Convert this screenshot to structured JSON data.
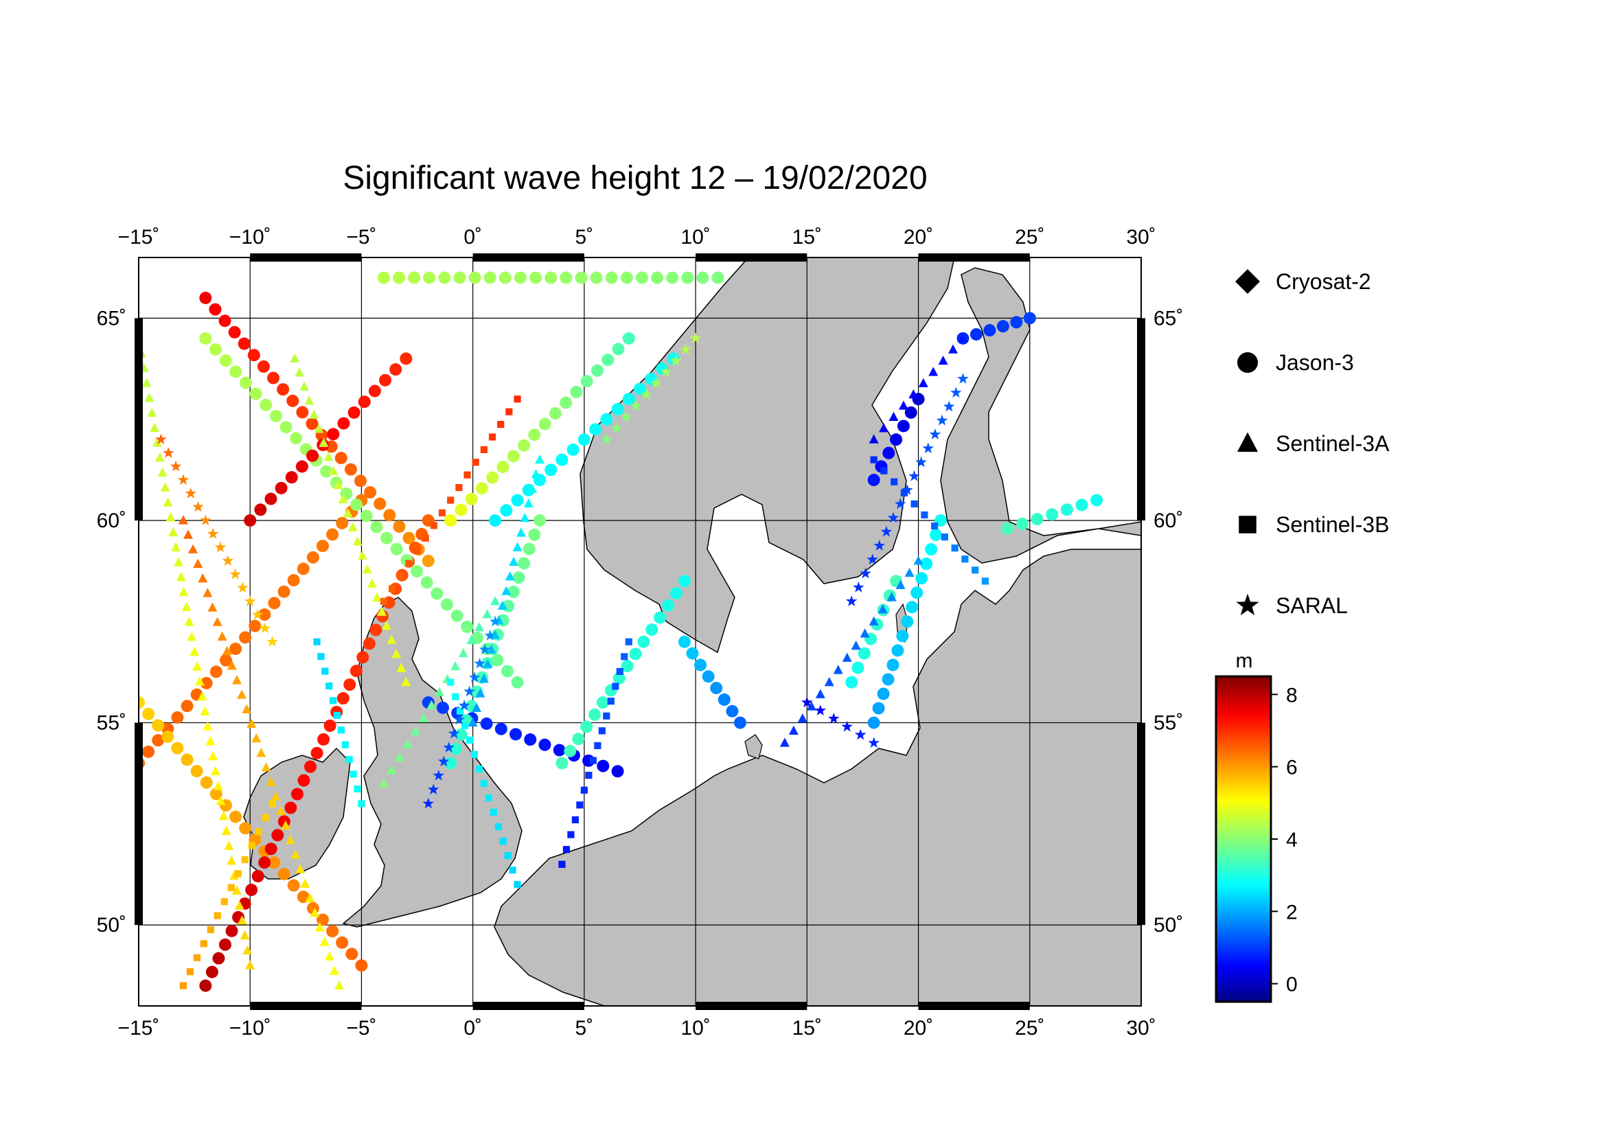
{
  "title": "Significant wave height 12 – 19/02/2020",
  "map": {
    "lon_range": [
      -15,
      30
    ],
    "lat_range": [
      48,
      66.5
    ],
    "lon_ticks": [
      -15,
      -10,
      -5,
      0,
      5,
      10,
      15,
      20,
      25,
      30
    ],
    "lat_ticks": [
      50,
      55,
      60,
      65
    ],
    "lon_tick_labels": [
      "−15˚",
      "−10˚",
      "−5˚",
      "0˚",
      "5˚",
      "10˚",
      "15˚",
      "20˚",
      "25˚",
      "30˚"
    ],
    "lat_tick_labels": [
      "50˚",
      "55˚",
      "60˚",
      "65˚"
    ],
    "grid": true,
    "land_color": "#bebebe",
    "sea_color": "#ffffff"
  },
  "legend": {
    "items": [
      {
        "label": "Cryosat-2",
        "symbol": "diamond"
      },
      {
        "label": "Jason-3",
        "symbol": "circle"
      },
      {
        "label": "Sentinel-3A",
        "symbol": "triangle"
      },
      {
        "label": "Sentinel-3B",
        "symbol": "square"
      },
      {
        "label": "SARAL",
        "symbol": "star"
      }
    ]
  },
  "colorbar": {
    "unit": "m",
    "min": -0.5,
    "max": 8.5,
    "ticks": [
      0,
      2,
      4,
      6,
      8
    ],
    "tick_labels": [
      "0",
      "2",
      "4",
      "6",
      "8"
    ],
    "colormap": "jet"
  },
  "chart_data": {
    "type": "scatter",
    "title": "Significant wave height 12 – 19/02/2020",
    "xlabel": "",
    "ylabel": "",
    "xlim": [
      -15,
      30
    ],
    "ylim": [
      48,
      66.5
    ],
    "value_unit": "m",
    "tracks": [
      {
        "satellite": "Jason-3",
        "from": [
          -15,
          54.0
        ],
        "to": [
          -5,
          60.5
        ],
        "swh": [
          6.5,
          6.3
        ]
      },
      {
        "satellite": "Jason-3",
        "from": [
          -12,
          65.5
        ],
        "to": [
          -2,
          59.0
        ],
        "swh": [
          7.5,
          6.0
        ]
      },
      {
        "satellite": "Jason-3",
        "from": [
          -5,
          49.0
        ],
        "to": [
          -15,
          55.5
        ],
        "swh": [
          6.5,
          5.5
        ]
      },
      {
        "satellite": "Jason-3",
        "from": [
          -12,
          48.5
        ],
        "to": [
          -2,
          60.0
        ],
        "swh": [
          8.0,
          6.5
        ]
      },
      {
        "satellite": "Jason-3",
        "from": [
          2,
          56.0
        ],
        "to": [
          -12,
          64.5
        ],
        "swh": [
          3.8,
          4.5
        ]
      },
      {
        "satellite": "Jason-3",
        "from": [
          7,
          64.5
        ],
        "to": [
          -1,
          60.0
        ],
        "swh": [
          3.5,
          5.0
        ]
      },
      {
        "satellite": "Jason-3",
        "from": [
          -10,
          60.0
        ],
        "to": [
          -3,
          64.0
        ],
        "swh": [
          7.8,
          7.0
        ]
      },
      {
        "satellite": "Jason-3",
        "from": [
          1,
          60.0
        ],
        "to": [
          9,
          64.0
        ],
        "swh": [
          2.8,
          3.0
        ]
      },
      {
        "satellite": "Jason-3",
        "from": [
          -2,
          55.5
        ],
        "to": [
          6.5,
          53.8
        ],
        "swh": [
          1.2,
          0.5
        ]
      },
      {
        "satellite": "Jason-3",
        "from": [
          -1,
          54.0
        ],
        "to": [
          3,
          60.0
        ],
        "swh": [
          3.2,
          4.0
        ]
      },
      {
        "satellite": "Jason-3",
        "from": [
          4,
          54.0
        ],
        "to": [
          9.5,
          58.5
        ],
        "swh": [
          3.5,
          3.0
        ]
      },
      {
        "satellite": "Jason-3",
        "from": [
          9.5,
          57.0
        ],
        "to": [
          12,
          55.0
        ],
        "swh": [
          2.5,
          1.5
        ]
      },
      {
        "satellite": "Jason-3",
        "from": [
          18,
          55.0
        ],
        "to": [
          21,
          60.0
        ],
        "swh": [
          2.0,
          3.0
        ]
      },
      {
        "satellite": "Jason-3",
        "from": [
          17,
          56.0
        ],
        "to": [
          19,
          58.5
        ],
        "swh": [
          3.0,
          3.5
        ]
      },
      {
        "satellite": "Jason-3",
        "from": [
          20,
          63.0
        ],
        "to": [
          18,
          61.0
        ],
        "swh": [
          0.2,
          0.8
        ]
      },
      {
        "satellite": "Jason-3",
        "from": [
          22,
          64.5
        ],
        "to": [
          25,
          65.0
        ],
        "swh": [
          1.0,
          1.2
        ]
      },
      {
        "satellite": "Jason-3",
        "from": [
          24,
          59.8
        ],
        "to": [
          28,
          60.5
        ],
        "swh": [
          3.5,
          3.0
        ]
      },
      {
        "satellite": "Jason-3",
        "from": [
          -4,
          66.0
        ],
        "to": [
          11,
          66.0
        ],
        "swh": [
          4.5,
          4.0
        ]
      },
      {
        "satellite": "Sentinel-3A",
        "from": [
          -15,
          64.5
        ],
        "to": [
          -10,
          49.0
        ],
        "swh": [
          4.5,
          5.5
        ]
      },
      {
        "satellite": "Sentinel-3A",
        "from": [
          -13,
          60.0
        ],
        "to": [
          -6,
          48.5
        ],
        "swh": [
          6.5,
          5.0
        ]
      },
      {
        "satellite": "Sentinel-3A",
        "from": [
          -8,
          64.0
        ],
        "to": [
          -3,
          56.0
        ],
        "swh": [
          4.5,
          5.0
        ]
      },
      {
        "satellite": "Sentinel-3A",
        "from": [
          0,
          55.0
        ],
        "to": [
          3,
          61.5
        ],
        "swh": [
          2.0,
          3.0
        ]
      },
      {
        "satellite": "Sentinel-3A",
        "from": [
          14,
          54.5
        ],
        "to": [
          20,
          59.0
        ],
        "swh": [
          1.0,
          2.0
        ]
      },
      {
        "satellite": "Sentinel-3A",
        "from": [
          18,
          62.0
        ],
        "to": [
          22,
          64.5
        ],
        "swh": [
          0.5,
          0.8
        ]
      },
      {
        "satellite": "Sentinel-3A",
        "from": [
          -4,
          53.5
        ],
        "to": [
          1,
          58.0
        ],
        "swh": [
          4.0,
          3.5
        ]
      },
      {
        "satellite": "Sentinel-3B",
        "from": [
          -13,
          48.5
        ],
        "to": [
          -9,
          53.0
        ],
        "swh": [
          6.0,
          5.5
        ]
      },
      {
        "satellite": "Sentinel-3B",
        "from": [
          2,
          51.0
        ],
        "to": [
          -1,
          56.0
        ],
        "swh": [
          2.5,
          3.0
        ]
      },
      {
        "satellite": "Sentinel-3B",
        "from": [
          4,
          51.5
        ],
        "to": [
          7,
          57.0
        ],
        "swh": [
          0.8,
          1.5
        ]
      },
      {
        "satellite": "Sentinel-3B",
        "from": [
          18,
          61.5
        ],
        "to": [
          23,
          58.5
        ],
        "swh": [
          1.0,
          2.0
        ]
      },
      {
        "satellite": "Sentinel-3B",
        "from": [
          -4,
          58.0
        ],
        "to": [
          2,
          63.0
        ],
        "swh": [
          6.5,
          7.0
        ]
      },
      {
        "satellite": "Sentinel-3B",
        "from": [
          -7,
          57.0
        ],
        "to": [
          -5,
          53.0
        ],
        "swh": [
          2.5,
          3.0
        ]
      },
      {
        "satellite": "SARAL",
        "from": [
          -14,
          62.0
        ],
        "to": [
          -9,
          57.0
        ],
        "swh": [
          6.5,
          5.5
        ]
      },
      {
        "satellite": "SARAL",
        "from": [
          -2,
          53.0
        ],
        "to": [
          1,
          57.5
        ],
        "swh": [
          1.0,
          2.0
        ]
      },
      {
        "satellite": "SARAL",
        "from": [
          15,
          55.5
        ],
        "to": [
          18,
          54.5
        ],
        "swh": [
          0.5,
          1.0
        ]
      },
      {
        "satellite": "SARAL",
        "from": [
          17,
          58.0
        ],
        "to": [
          22,
          63.5
        ],
        "swh": [
          1.0,
          1.5
        ]
      },
      {
        "satellite": "SARAL",
        "from": [
          6,
          62.0
        ],
        "to": [
          10,
          64.5
        ],
        "swh": [
          4.0,
          4.5
        ]
      }
    ]
  }
}
